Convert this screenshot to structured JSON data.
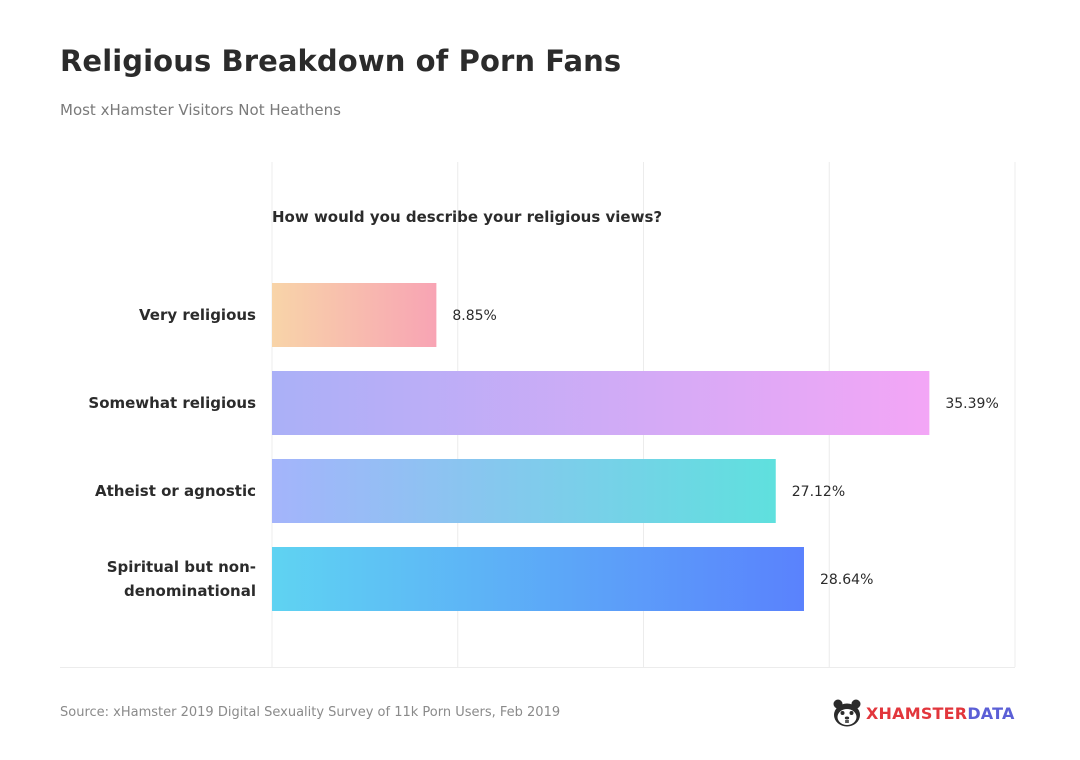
{
  "header": {
    "title": "Religious Breakdown of Porn Fans",
    "subtitle": "Most xHamster Visitors Not Heathens"
  },
  "chart_data": {
    "type": "bar",
    "orientation": "horizontal",
    "question": "How would you describe your religious views?",
    "categories": [
      "Very religious",
      "Somewhat religious",
      "Atheist or agnostic",
      "Spiritual but non-denominational"
    ],
    "values": [
      8.85,
      35.39,
      27.12,
      28.64
    ],
    "value_labels": [
      "8.85%",
      "35.39%",
      "27.12%",
      "28.64%"
    ],
    "xlim": [
      0,
      40
    ],
    "grid": true,
    "bar_gradients": [
      [
        "#f8d4a8",
        "#f8a4b4"
      ],
      [
        "#aab0f7",
        "#f3a6f6"
      ],
      [
        "#a4b4fb",
        "#5fe0de"
      ],
      [
        "#5fd3f2",
        "#5a82fd"
      ]
    ]
  },
  "footer": {
    "source": "Source: xHamster 2019 Digital Sexuality Survey of 11k Porn Users, Feb 2019",
    "logo_word1": "XHAMSTER",
    "logo_word2": "DATA",
    "logo_icon": "hamster-face-icon"
  }
}
